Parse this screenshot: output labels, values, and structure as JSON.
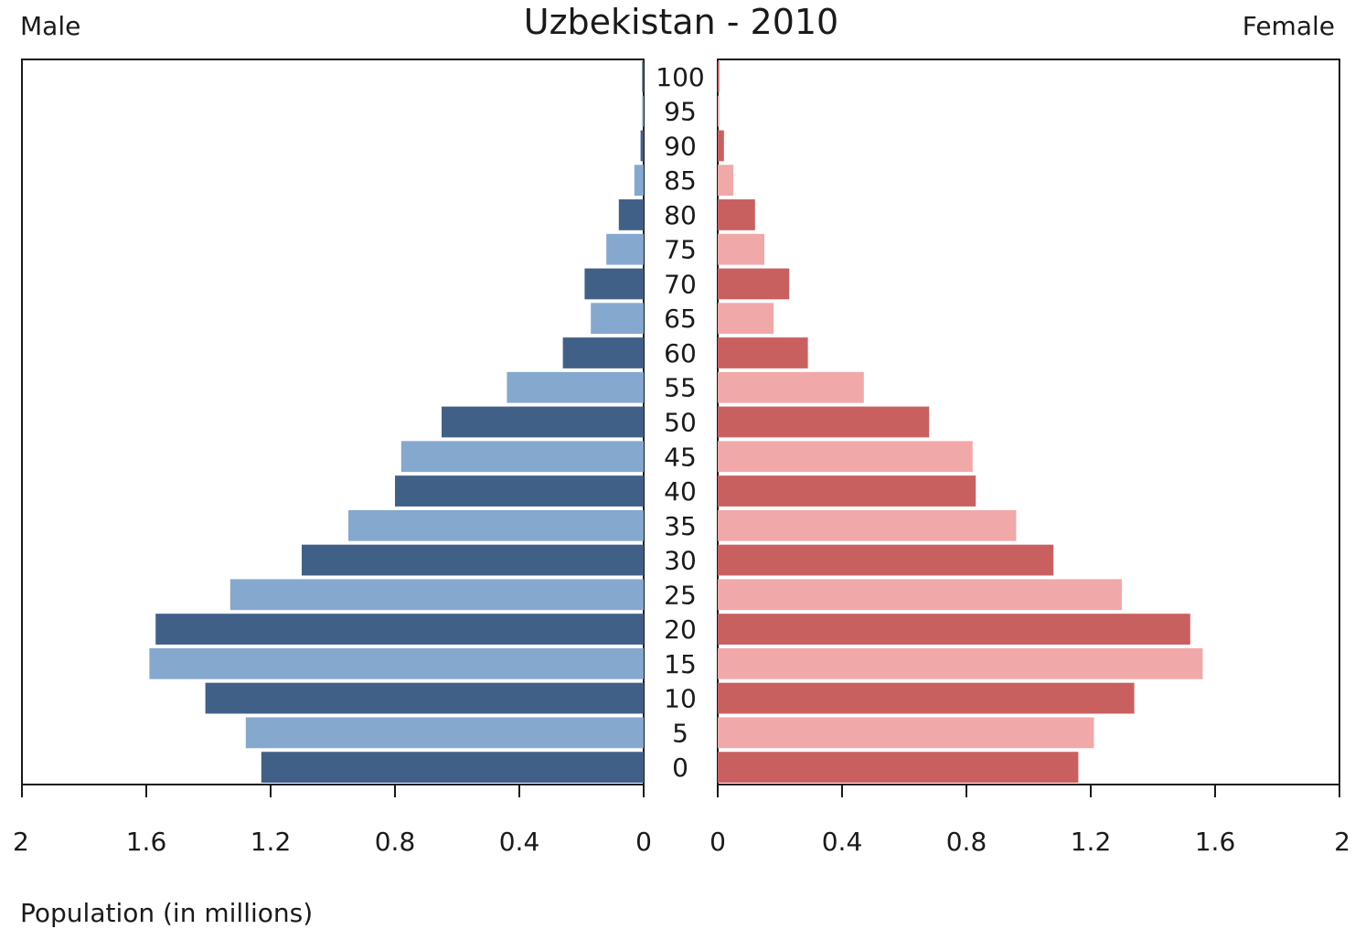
{
  "chart_data": {
    "type": "bar",
    "title": "Uzbekistan - 2010",
    "left_label": "Male",
    "right_label": "Female",
    "xlabel": "Population (in millions)",
    "xlim": [
      0,
      2
    ],
    "x_ticks": [
      0,
      0.4,
      0.8,
      1.2,
      1.6,
      2
    ],
    "x_tick_labels": [
      "0",
      "0.4",
      "0.8",
      "1.2",
      "1.6",
      "2"
    ],
    "categories": [
      "0",
      "5",
      "10",
      "15",
      "20",
      "25",
      "30",
      "35",
      "40",
      "45",
      "50",
      "55",
      "60",
      "65",
      "70",
      "75",
      "80",
      "85",
      "90",
      "95",
      "100"
    ],
    "series": [
      {
        "name": "Male",
        "values": [
          1.23,
          1.28,
          1.41,
          1.59,
          1.57,
          1.33,
          1.1,
          0.95,
          0.8,
          0.78,
          0.65,
          0.44,
          0.26,
          0.17,
          0.19,
          0.12,
          0.08,
          0.03,
          0.01,
          0.005,
          0.005
        ],
        "colors": [
          "#416088",
          "#85a8cf"
        ]
      },
      {
        "name": "Female",
        "values": [
          1.16,
          1.21,
          1.34,
          1.56,
          1.52,
          1.3,
          1.08,
          0.96,
          0.83,
          0.82,
          0.68,
          0.47,
          0.29,
          0.18,
          0.23,
          0.15,
          0.12,
          0.05,
          0.02,
          0.005,
          0.005
        ],
        "colors": [
          "#c96060",
          "#f0a8a8"
        ]
      }
    ],
    "grid": false
  }
}
